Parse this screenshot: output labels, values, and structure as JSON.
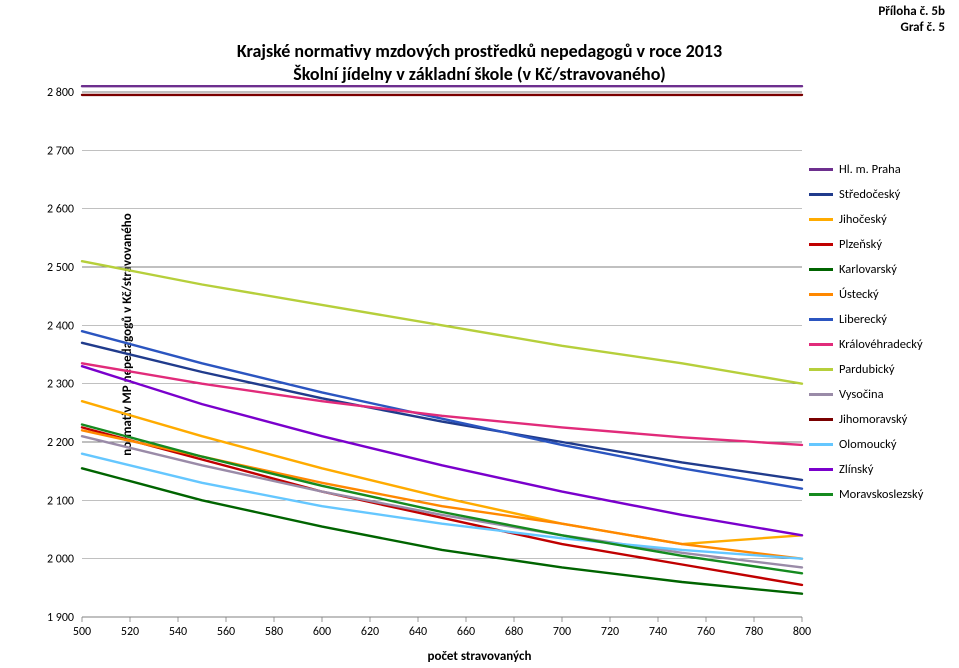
{
  "header": {
    "line1": "Příloha č. 5b",
    "line2": "Graf č. 5"
  },
  "chart": {
    "type": "line",
    "title_line1": "Krajské normativy mzdových prostředků nepedagogů v roce 2013",
    "title_line2": "Školní jídelny v základní škole (v Kč/stravovaného)",
    "title_fontsize": 18,
    "xlabel": "počet stravovaných",
    "ylabel": "normativ MP nepedagogů v Kč/stravovaného",
    "label_fontsize": 13,
    "tick_fontsize": 12,
    "xlim": [
      500,
      800
    ],
    "ylim": [
      1900,
      2800
    ],
    "xtick_step": 20,
    "ytick_step": 100,
    "background_color": "#ffffff",
    "grid_color": "#808080",
    "grid_width": 0.6,
    "line_width": 2.4,
    "x_points": [
      500,
      550,
      600,
      650,
      700,
      750,
      800
    ],
    "legend": {
      "position": "right"
    },
    "series": [
      {
        "name": "Hl. m. Praha",
        "color": "#6d2f8e",
        "values": [
          2810,
          2810,
          2810,
          2810,
          2810,
          2810,
          2810
        ]
      },
      {
        "name": "Středočeský",
        "color": "#203b8c",
        "values": [
          2370,
          2320,
          2275,
          2235,
          2200,
          2165,
          2135
        ]
      },
      {
        "name": "Jihočeský",
        "color": "#ffab00",
        "values": [
          2270,
          2210,
          2155,
          2105,
          2060,
          2025,
          2040
        ]
      },
      {
        "name": "Plzeňský",
        "color": "#c00000",
        "values": [
          2225,
          2170,
          2115,
          2070,
          2025,
          1990,
          1955
        ]
      },
      {
        "name": "Karlovarský",
        "color": "#006400",
        "values": [
          2155,
          2100,
          2055,
          2015,
          1985,
          1960,
          1940
        ]
      },
      {
        "name": "Ústecký",
        "color": "#ff8800",
        "values": [
          2220,
          2175,
          2130,
          2090,
          2060,
          2025,
          2000
        ]
      },
      {
        "name": "Liberecký",
        "color": "#2b55c0",
        "values": [
          2390,
          2335,
          2285,
          2240,
          2195,
          2155,
          2120
        ]
      },
      {
        "name": "Královéhradecký",
        "color": "#e12b7a",
        "values": [
          2335,
          2300,
          2270,
          2245,
          2225,
          2208,
          2195
        ]
      },
      {
        "name": "Pardubický",
        "color": "#b6cf3b",
        "values": [
          2510,
          2470,
          2435,
          2400,
          2365,
          2335,
          2300
        ]
      },
      {
        "name": "Vysočina",
        "color": "#9a8ba8",
        "values": [
          2210,
          2160,
          2115,
          2075,
          2040,
          2010,
          1985
        ]
      },
      {
        "name": "Jihomoravský",
        "color": "#7a0000",
        "values": [
          2795,
          2795,
          2795,
          2795,
          2795,
          2795,
          2795
        ]
      },
      {
        "name": "Olomoucký",
        "color": "#65c7ff",
        "values": [
          2180,
          2130,
          2090,
          2060,
          2035,
          2015,
          2000
        ]
      },
      {
        "name": "Zlínský",
        "color": "#7a00cc",
        "values": [
          2330,
          2265,
          2210,
          2160,
          2115,
          2075,
          2040
        ]
      },
      {
        "name": "Moravskoslezský",
        "color": "#158a1f",
        "values": [
          2230,
          2175,
          2125,
          2080,
          2040,
          2005,
          1975
        ]
      }
    ]
  }
}
